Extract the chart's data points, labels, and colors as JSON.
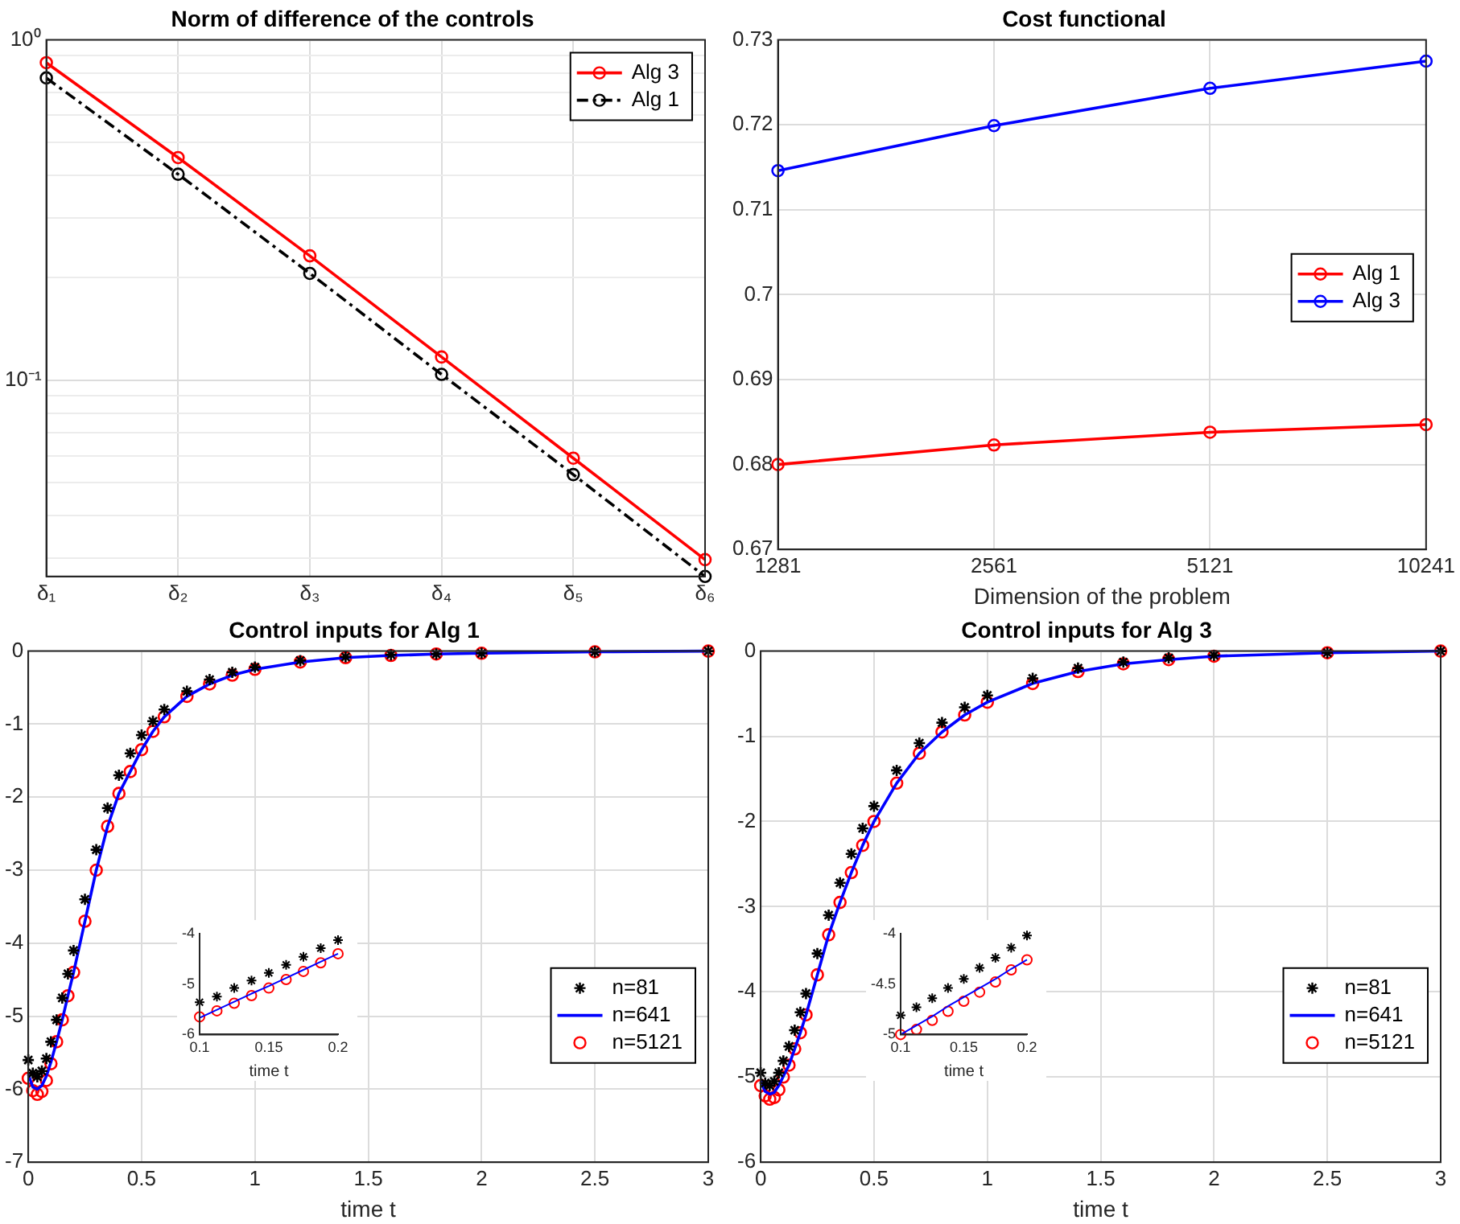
{
  "chart_data": [
    {
      "type": "line",
      "title": "Norm of difference of the controls",
      "categories": [
        "δ₁",
        "δ₂",
        "δ₃",
        "δ₄",
        "δ₅",
        "δ₆"
      ],
      "log": true,
      "ylim": [
        0.0265,
        1
      ],
      "yticks": [
        {
          "value": 1,
          "label": "10⁰"
        },
        {
          "value": 0.9,
          "label": null
        },
        {
          "value": 0.8,
          "label": null
        },
        {
          "value": 0.7,
          "label": null
        },
        {
          "value": 0.6,
          "label": null
        },
        {
          "value": 0.5,
          "label": null
        },
        {
          "value": 0.4,
          "label": null
        },
        {
          "value": 0.3,
          "label": null
        },
        {
          "value": 0.2,
          "label": null
        },
        {
          "value": 0.1,
          "label": "10⁻¹"
        },
        {
          "value": 0.09,
          "label": null
        },
        {
          "value": 0.08,
          "label": null
        },
        {
          "value": 0.07,
          "label": null
        },
        {
          "value": 0.06,
          "label": null
        },
        {
          "value": 0.05,
          "label": null
        },
        {
          "value": 0.04,
          "label": null
        },
        {
          "value": 0.03,
          "label": null
        }
      ],
      "grid": true,
      "legend": "top right",
      "series": [
        {
          "name": "Alg 3",
          "color": "#ff0000",
          "marker": "circle",
          "line_style": "solid",
          "values": [
            0.857,
            0.451,
            0.232,
            0.117,
            0.059,
            0.0297
          ]
        },
        {
          "name": "Alg 1",
          "color": "#000000",
          "marker": "circle",
          "line_style": "dashed",
          "values": [
            0.773,
            0.403,
            0.206,
            0.104,
            0.0528,
            0.0265
          ]
        }
      ]
    },
    {
      "type": "line",
      "title": "Cost functional",
      "xlabel": "Dimension of the problem",
      "categories": [
        "1281",
        "2561",
        "5121",
        "10241"
      ],
      "ylim": [
        0.67,
        0.73
      ],
      "yticks": [
        0.67,
        0.68,
        0.69,
        0.7,
        0.71,
        0.72,
        0.73
      ],
      "grid": true,
      "legend": "right",
      "series": [
        {
          "name": "Alg 1",
          "color": "#ff0000",
          "marker": "circle",
          "line_style": "solid",
          "values": [
            0.68,
            0.6823,
            0.6838,
            0.6847
          ]
        },
        {
          "name": "Alg 3",
          "color": "#0000ff",
          "marker": "circle",
          "line_style": "solid",
          "values": [
            0.7146,
            0.7199,
            0.7243,
            0.7275
          ]
        }
      ]
    },
    {
      "type": "scatter",
      "title": "Control inputs for Alg 1",
      "xlabel": "time t",
      "x": [
        0,
        0.02,
        0.04,
        0.06,
        0.08,
        0.1,
        0.125,
        0.15,
        0.175,
        0.2,
        0.25,
        0.3,
        0.35,
        0.4,
        0.45,
        0.5,
        0.55,
        0.6,
        0.7,
        0.8,
        0.9,
        1.0,
        1.2,
        1.4,
        1.6,
        1.8,
        2.0,
        2.5,
        3.0
      ],
      "xlim": [
        0,
        3
      ],
      "xticks": [
        0,
        0.5,
        1,
        1.5,
        2,
        2.5,
        3
      ],
      "ylim": [
        -7,
        0
      ],
      "yticks": [
        -7,
        -6,
        -5,
        -4,
        -3,
        -2,
        -1,
        0
      ],
      "grid": true,
      "legend": "bottom right",
      "series": [
        {
          "name": "n=81",
          "color": "#000000",
          "marker": "cross",
          "values": [
            -5.6,
            -5.78,
            -5.83,
            -5.75,
            -5.58,
            -5.35,
            -5.05,
            -4.75,
            -4.42,
            -4.1,
            -3.4,
            -2.72,
            -2.15,
            -1.7,
            -1.4,
            -1.15,
            -0.96,
            -0.8,
            -0.55,
            -0.39,
            -0.29,
            -0.22,
            -0.13,
            -0.08,
            -0.05,
            -0.04,
            -0.03,
            -0.01,
            0
          ]
        },
        {
          "name": "n=641",
          "type": "line",
          "color": "#0000ff",
          "marker": "none",
          "line_style": "solid",
          "values": [
            -5.8,
            -5.97,
            -6.0,
            -5.95,
            -5.82,
            -5.63,
            -5.35,
            -5.05,
            -4.72,
            -4.4,
            -3.7,
            -3.0,
            -2.4,
            -1.95,
            -1.65,
            -1.35,
            -1.1,
            -0.9,
            -0.62,
            -0.45,
            -0.33,
            -0.25,
            -0.15,
            -0.09,
            -0.06,
            -0.04,
            -0.03,
            -0.01,
            0
          ]
        },
        {
          "name": "n=5121",
          "color": "#ff0000",
          "marker": "circle",
          "values": [
            -5.85,
            -6.02,
            -6.07,
            -6.03,
            -5.88,
            -5.65,
            -5.35,
            -5.05,
            -4.72,
            -4.4,
            -3.7,
            -3.0,
            -2.4,
            -1.95,
            -1.65,
            -1.35,
            -1.1,
            -0.9,
            -0.62,
            -0.45,
            -0.33,
            -0.25,
            -0.15,
            -0.09,
            -0.06,
            -0.04,
            -0.03,
            -0.01,
            0
          ]
        }
      ]
    },
    {
      "type": "scatter",
      "xlabel": "time t",
      "x": [
        0.1,
        0.1125,
        0.125,
        0.1375,
        0.15,
        0.1625,
        0.175,
        0.1875,
        0.2
      ],
      "xlim": [
        0.1,
        0.2
      ],
      "xticks": [
        0.1,
        0.15,
        0.2
      ],
      "ylim": [
        -6,
        -4
      ],
      "yticks": [
        -6,
        -5,
        -4
      ],
      "series": [
        {
          "color": "#000000",
          "marker": "cross",
          "values": [
            -5.36,
            -5.25,
            -5.08,
            -4.93,
            -4.78,
            -4.62,
            -4.46,
            -4.29,
            -4.13
          ]
        },
        {
          "type": "line",
          "color": "#0000ff",
          "marker": "none",
          "line_style": "solid",
          "values": [
            -5.67,
            -5.51,
            -5.35,
            -5.19,
            -5.04,
            -4.88,
            -4.72,
            -4.56,
            -4.4
          ]
        },
        {
          "color": "#ff0000",
          "marker": "circle",
          "values": [
            -5.65,
            -5.53,
            -5.38,
            -5.23,
            -5.08,
            -4.91,
            -4.75,
            -4.58,
            -4.4
          ]
        }
      ]
    },
    {
      "type": "scatter",
      "title": "Control inputs for Alg 3",
      "xlabel": "time t",
      "x": [
        0,
        0.02,
        0.04,
        0.06,
        0.08,
        0.1,
        0.125,
        0.15,
        0.175,
        0.2,
        0.25,
        0.3,
        0.35,
        0.4,
        0.45,
        0.5,
        0.6,
        0.7,
        0.8,
        0.9,
        1.0,
        1.2,
        1.4,
        1.6,
        1.8,
        2.0,
        2.5,
        3.0
      ],
      "xlim": [
        0,
        3
      ],
      "xticks": [
        0,
        0.5,
        1,
        1.5,
        2,
        2.5,
        3
      ],
      "ylim": [
        -6,
        0
      ],
      "yticks": [
        -6,
        -5,
        -4,
        -3,
        -2,
        -1,
        0
      ],
      "grid": true,
      "legend": "bottom right",
      "series": [
        {
          "name": "n=81",
          "color": "#000000",
          "marker": "cross",
          "values": [
            -4.95,
            -5.07,
            -5.1,
            -5.05,
            -4.95,
            -4.81,
            -4.64,
            -4.45,
            -4.24,
            -4.02,
            -3.55,
            -3.1,
            -2.72,
            -2.38,
            -2.08,
            -1.82,
            -1.4,
            -1.08,
            -0.84,
            -0.66,
            -0.52,
            -0.32,
            -0.2,
            -0.13,
            -0.08,
            -0.05,
            -0.02,
            0
          ]
        },
        {
          "name": "n=641",
          "type": "line",
          "color": "#0000ff",
          "marker": "none",
          "line_style": "solid",
          "values": [
            -5.05,
            -5.17,
            -5.2,
            -5.18,
            -5.1,
            -4.99,
            -4.86,
            -4.67,
            -4.48,
            -4.27,
            -3.8,
            -3.33,
            -2.95,
            -2.6,
            -2.28,
            -2.0,
            -1.55,
            -1.2,
            -0.95,
            -0.75,
            -0.6,
            -0.38,
            -0.24,
            -0.15,
            -0.1,
            -0.06,
            -0.02,
            0
          ]
        },
        {
          "name": "n=5121",
          "color": "#ff0000",
          "marker": "circle",
          "values": [
            -5.1,
            -5.22,
            -5.26,
            -5.24,
            -5.15,
            -5.0,
            -4.86,
            -4.67,
            -4.48,
            -4.27,
            -3.8,
            -3.33,
            -2.95,
            -2.6,
            -2.28,
            -2.0,
            -1.55,
            -1.2,
            -0.95,
            -0.75,
            -0.6,
            -0.38,
            -0.24,
            -0.15,
            -0.1,
            -0.06,
            -0.02,
            0
          ]
        }
      ]
    },
    {
      "type": "scatter",
      "xlabel": "time t",
      "x": [
        0.1,
        0.1125,
        0.125,
        0.1375,
        0.15,
        0.1625,
        0.175,
        0.1875,
        0.2
      ],
      "xlim": [
        0.1,
        0.2
      ],
      "xticks": [
        0.1,
        0.15,
        0.2
      ],
      "ylim": [
        -5,
        -4
      ],
      "yticks": [
        -5,
        -4.5,
        -4
      ],
      "series": [
        {
          "color": "#000000",
          "marker": "cross",
          "values": [
            -4.81,
            -4.73,
            -4.64,
            -4.54,
            -4.45,
            -4.34,
            -4.24,
            -4.14,
            -4.02
          ]
        },
        {
          "type": "line",
          "color": "#0000ff",
          "marker": "none",
          "line_style": "solid",
          "values": [
            -5.0,
            -4.91,
            -4.82,
            -4.72,
            -4.63,
            -4.54,
            -4.45,
            -4.35,
            -4.26
          ]
        },
        {
          "color": "#ff0000",
          "marker": "circle",
          "values": [
            -5.0,
            -4.95,
            -4.86,
            -4.77,
            -4.67,
            -4.58,
            -4.48,
            -4.36,
            -4.26
          ]
        }
      ]
    }
  ]
}
